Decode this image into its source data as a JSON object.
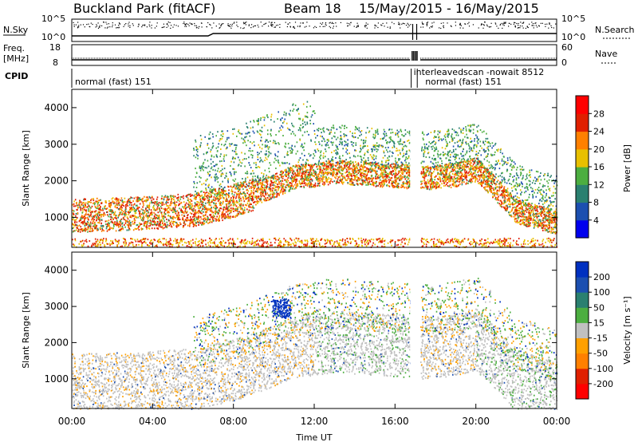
{
  "header": {
    "station": "Buckland Park (fitACF)",
    "beam": "Beam 18",
    "dates": "15/May/2015 - 16/May/2015"
  },
  "status_panels": {
    "nsky_label": "N.Sky",
    "nsky_ticks": [
      "10^5",
      "10^0"
    ],
    "nsearch_label": "N.Search",
    "nsearch_ticks": [
      "10^5",
      "10^0"
    ],
    "freq_label": "Freq.",
    "freq_unit": "[MHz]",
    "freq_ticks": [
      "18",
      "8"
    ],
    "nave_label": "Nave",
    "nave_ticks": [
      "60",
      "0"
    ],
    "cpid_label": "CPID",
    "cpid_segments": [
      {
        "text": "normal (fast) 151",
        "start_h": 0,
        "end_h": 16.8
      },
      {
        "text": "interleavedscan -nowait 8512",
        "start_h": 16.8,
        "end_h": 17.1
      },
      {
        "text": "normal (fast) 151",
        "start_h": 17.1,
        "end_h": 24
      }
    ]
  },
  "chart_data": [
    {
      "type": "heatmap",
      "name": "Power",
      "ylabel": "Slant Range [km]",
      "xlabel": "",
      "xlim": [
        0,
        24
      ],
      "ylim": [
        180,
        4500
      ],
      "yticks": [
        "1000",
        "2000",
        "3000",
        "4000"
      ],
      "colorbar_label": "Power [dB]",
      "colorbar_ticks": [
        "4",
        "8",
        "12",
        "16",
        "20",
        "24",
        "28"
      ],
      "colorbar_colors": [
        "#0000ee",
        "#1c4fb0",
        "#2a8070",
        "#4cae40",
        "#e8c000",
        "#ff8000",
        "#e02000",
        "#ff0000"
      ],
      "features": [
        {
          "feature": "main-echo",
          "x": [
            0,
            3,
            6,
            8,
            10,
            11,
            12,
            13,
            14,
            16.8
          ],
          "y": [
            1100,
            1150,
            1250,
            1500,
            1900,
            2150,
            2200,
            2300,
            2250,
            2150
          ]
        },
        {
          "feature": "main-echo",
          "x": [
            17.2,
            19,
            20,
            21,
            22,
            24
          ],
          "y": [
            2100,
            2200,
            2350,
            1800,
            1200,
            900
          ]
        }
      ]
    },
    {
      "type": "heatmap",
      "name": "Velocity",
      "ylabel": "Slant Range [km]",
      "xlabel": "Time UT",
      "xlim": [
        0,
        24
      ],
      "ylim": [
        180,
        4500
      ],
      "xticks": [
        "00:00",
        "04:00",
        "08:00",
        "12:00",
        "16:00",
        "20:00",
        "00:00"
      ],
      "yticks": [
        "1000",
        "2000",
        "3000",
        "4000"
      ],
      "colorbar_label": "Velocity [m s⁻¹]",
      "colorbar_ticks": [
        "200",
        "100",
        "50",
        "15",
        "-15",
        "-50",
        "-100",
        "-200"
      ],
      "colorbar_colors": [
        "#0030c0",
        "#1c4fb0",
        "#2a8070",
        "#4cae40",
        "#c0c0c0",
        "#ffa000",
        "#ff8000",
        "#e02000",
        "#ff0000"
      ]
    }
  ]
}
